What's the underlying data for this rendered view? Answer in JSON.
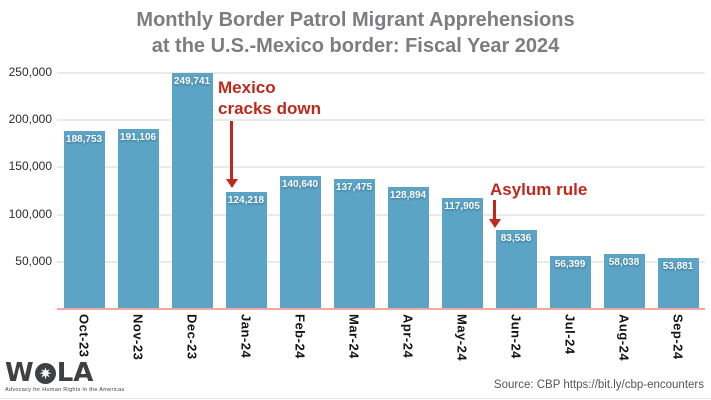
{
  "title": {
    "line1": "Monthly Border Patrol Migrant Apprehensions",
    "line2": "at the U.S.-Mexico border: Fiscal Year 2024"
  },
  "chart_data": {
    "type": "bar",
    "title": "Monthly Border Patrol Migrant Apprehensions at the U.S.-Mexico border: Fiscal Year 2024",
    "categories": [
      "Oct-23",
      "Nov-23",
      "Dec-23",
      "Jan-24",
      "Feb-24",
      "Mar-24",
      "Apr-24",
      "May-24",
      "Jun-24",
      "Jul-24",
      "Aug-24",
      "Sep-24"
    ],
    "values": [
      188753,
      191106,
      249741,
      124218,
      140640,
      137475,
      128894,
      117905,
      83536,
      56399,
      58038,
      53881
    ],
    "value_labels": [
      "188,753",
      "191,106",
      "249,741",
      "124,218",
      "140,640",
      "137,475",
      "128,894",
      "117,905",
      "83,536",
      "56,399",
      "58,038",
      "53,881"
    ],
    "xlabel": "",
    "ylabel": "",
    "ylim": [
      0,
      250000
    ],
    "ytick_interval": 50000,
    "ytick_labels": [
      "50,000",
      "100,000",
      "150,000",
      "200,000",
      "250,000"
    ],
    "grid": true,
    "legend": "none",
    "bar_color": "#5ca4c5",
    "annotations": [
      {
        "line1": "Mexico",
        "line2": "cracks down",
        "target_category": "Jan-24"
      },
      {
        "line1": "Asylum rule",
        "line2": "",
        "target_category": "Jun-24"
      }
    ]
  },
  "footer": {
    "logo": {
      "w": "W",
      "la": "LA",
      "dove_icon": "dove-icon",
      "tagline": "Advocacy for Human Rights in the Americas"
    },
    "source": "Source: CBP https://bit.ly/cbp-encounters"
  },
  "colors": {
    "bar": "#5ca4c5",
    "annotation_red": "#c0281a",
    "title_gray": "#7b7d80",
    "baseline_salmon": "#efaaa0",
    "gridline": "#eaeae8"
  }
}
